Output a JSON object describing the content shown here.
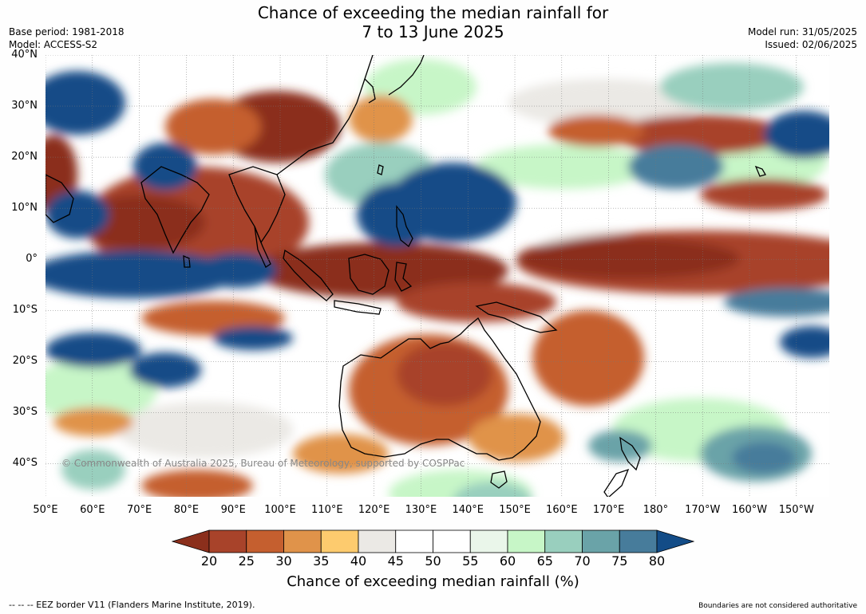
{
  "title": {
    "line1": "Chance of exceeding the median rainfall for",
    "line2": "7 to 13 June 2025"
  },
  "meta_left": {
    "base_period": "Base period: 1981-2018",
    "model": "Model: ACCESS-S2"
  },
  "meta_right": {
    "model_run": "Model run: 31/05/2025",
    "issued": "Issued: 02/06/2025"
  },
  "map": {
    "lat_labels": [
      "40°N",
      "30°N",
      "20°N",
      "10°N",
      "0°",
      "10°S",
      "20°S",
      "30°S",
      "40°S"
    ],
    "lat_values": [
      40,
      30,
      20,
      10,
      0,
      -10,
      -20,
      -30,
      -40
    ],
    "lon_labels": [
      "50°E",
      "60°E",
      "70°E",
      "80°E",
      "90°E",
      "100°E",
      "110°E",
      "120°E",
      "130°E",
      "140°E",
      "150°E",
      "160°E",
      "170°E",
      "180°",
      "170°W",
      "160°W",
      "150°W"
    ],
    "lon_values": [
      50,
      60,
      70,
      80,
      90,
      100,
      110,
      120,
      130,
      140,
      150,
      160,
      170,
      180,
      190,
      200,
      210
    ],
    "extent": {
      "lon_min": 50,
      "lon_max": 217,
      "lat_min": -46.5,
      "lat_max": 40
    },
    "copyright": "© Commonwealth of Australia 2025, Bureau of Meteorology, supported by COSPPac",
    "land_outline_color": "#000000"
  },
  "colorbar": {
    "ticks": [
      "20",
      "25",
      "30",
      "35",
      "40",
      "45",
      "50",
      "55",
      "60",
      "65",
      "70",
      "75",
      "80"
    ],
    "colors": [
      "#8b2f1c",
      "#a8432a",
      "#c55f2f",
      "#e0934a",
      "#fdcb6e",
      "#ebe9e5",
      "#ffffff",
      "#ffffff",
      "#eaf6ea",
      "#c7f6c7",
      "#99cfbe",
      "#6aa3a8",
      "#477c9b",
      "#134c87"
    ],
    "label": "Chance of exceeding median rainfall (%)"
  },
  "footer": {
    "left": "--  --  -- EEZ border V11 (Flanders Marine Institute, 2019).",
    "right": "Boundaries are not considered authoritative"
  }
}
